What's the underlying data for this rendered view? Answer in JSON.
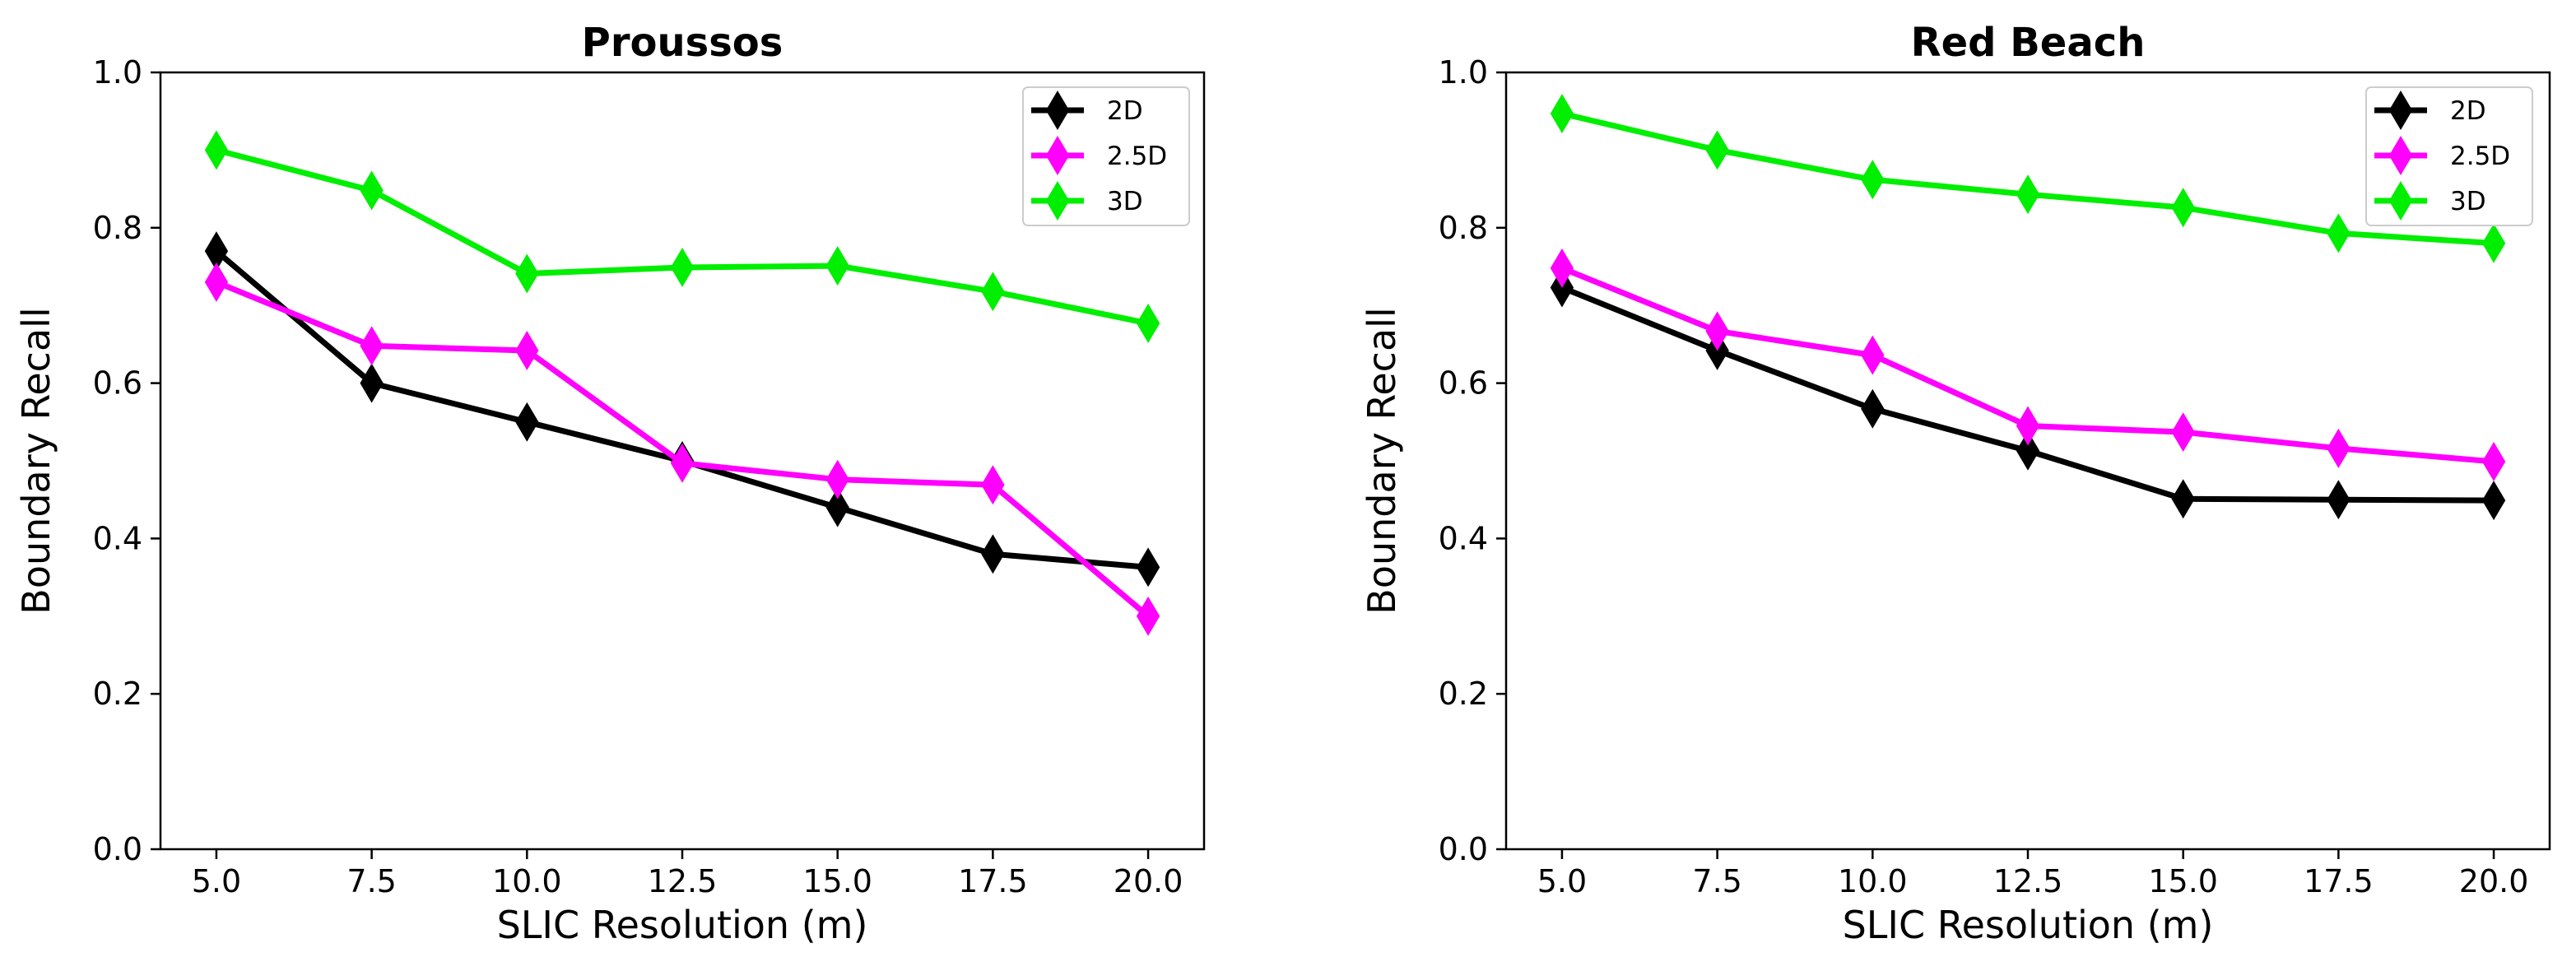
{
  "chart_data": [
    {
      "type": "line",
      "title": "Proussos",
      "xlabel": "SLIC Resolution (m)",
      "ylabel": "Boundary Recall",
      "x": [
        5.0,
        7.5,
        10.0,
        12.5,
        15.0,
        17.5,
        20.0
      ],
      "x_tick_labels": [
        "5.0",
        "7.5",
        "10.0",
        "12.5",
        "15.0",
        "17.5",
        "20.0"
      ],
      "y_tick_values": [
        0.0,
        0.2,
        0.4,
        0.6,
        0.8,
        1.0
      ],
      "y_tick_labels": [
        "0.0",
        "0.2",
        "0.4",
        "0.6",
        "0.8",
        "1.0"
      ],
      "xlim": [
        4.1,
        20.9
      ],
      "ylim": [
        0.0,
        1.0
      ],
      "grid": false,
      "legend_position": "top-right",
      "series": [
        {
          "name": "2D",
          "color": "#000000",
          "values": [
            0.77,
            0.6,
            0.55,
            0.5,
            0.44,
            0.38,
            0.363
          ]
        },
        {
          "name": "2.5D",
          "color": "#ff00ff",
          "values": [
            0.73,
            0.648,
            0.642,
            0.497,
            0.476,
            0.469,
            0.3
          ]
        },
        {
          "name": "3D",
          "color": "#00ee00",
          "values": [
            0.9,
            0.848,
            0.741,
            0.749,
            0.751,
            0.718,
            0.677
          ]
        }
      ]
    },
    {
      "type": "line",
      "title": "Red Beach",
      "xlabel": "SLIC Resolution (m)",
      "ylabel": "Boundary Recall",
      "x": [
        5.0,
        7.5,
        10.0,
        12.5,
        15.0,
        17.5,
        20.0
      ],
      "x_tick_labels": [
        "5.0",
        "7.5",
        "10.0",
        "12.5",
        "15.0",
        "17.5",
        "20.0"
      ],
      "y_tick_values": [
        0.0,
        0.2,
        0.4,
        0.6,
        0.8,
        1.0
      ],
      "y_tick_labels": [
        "0.0",
        "0.2",
        "0.4",
        "0.6",
        "0.8",
        "1.0"
      ],
      "xlim": [
        4.1,
        20.9
      ],
      "ylim": [
        0.0,
        1.0
      ],
      "grid": false,
      "legend_position": "top-right",
      "series": [
        {
          "name": "2D",
          "color": "#000000",
          "values": [
            0.723,
            0.642,
            0.567,
            0.513,
            0.451,
            0.45,
            0.449
          ]
        },
        {
          "name": "2.5D",
          "color": "#ff00ff",
          "values": [
            0.748,
            0.667,
            0.636,
            0.545,
            0.537,
            0.516,
            0.499
          ]
        },
        {
          "name": "3D",
          "color": "#00ee00",
          "values": [
            0.947,
            0.9,
            0.862,
            0.843,
            0.826,
            0.793,
            0.78
          ]
        }
      ]
    }
  ]
}
